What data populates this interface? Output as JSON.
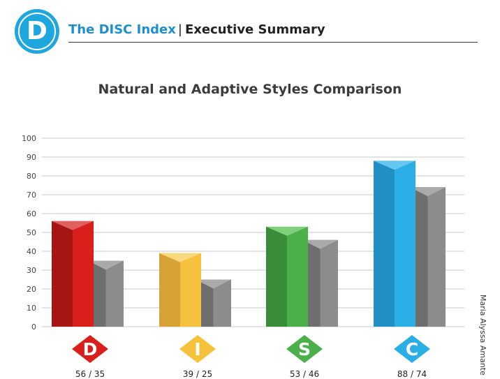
{
  "header": {
    "logo_letter": "D",
    "brand": "The DISC Index",
    "separator": "|",
    "section": "Executive Summary"
  },
  "author": "Maria Alyssa Amante",
  "chart_data": {
    "type": "bar",
    "title": "Natural and Adaptive Styles Comparison",
    "xlabel": "",
    "ylabel": "",
    "ylim": [
      0,
      100
    ],
    "yticks": [
      0,
      10,
      20,
      30,
      40,
      50,
      60,
      70,
      80,
      90,
      100
    ],
    "grid": true,
    "legend": "none",
    "categories": [
      "D",
      "I",
      "S",
      "C"
    ],
    "series": [
      {
        "values": [
          56,
          39,
          53,
          88
        ]
      },
      {
        "values": [
          35,
          25,
          46,
          74
        ]
      }
    ],
    "category_labels": [
      "56 / 35",
      "39 / 25",
      "53 / 46",
      "88 / 74"
    ],
    "colors": {
      "D": {
        "light": "#d81f1b",
        "dark": "#a51613",
        "top": "#e0605d"
      },
      "I": {
        "light": "#f6c23c",
        "dark": "#d6a233",
        "top": "#f9d97e"
      },
      "S": {
        "light": "#4bb04a",
        "dark": "#3a8d38",
        "top": "#7ed07c"
      },
      "C": {
        "light": "#29aee6",
        "dark": "#1f8fc4",
        "top": "#66c6ef"
      },
      "adaptive": {
        "light": "#8c8c8c",
        "dark": "#6e6e6e",
        "top": "#aaaaaa"
      },
      "grid": "#c8c8c8",
      "tick_text": "#444444"
    }
  }
}
